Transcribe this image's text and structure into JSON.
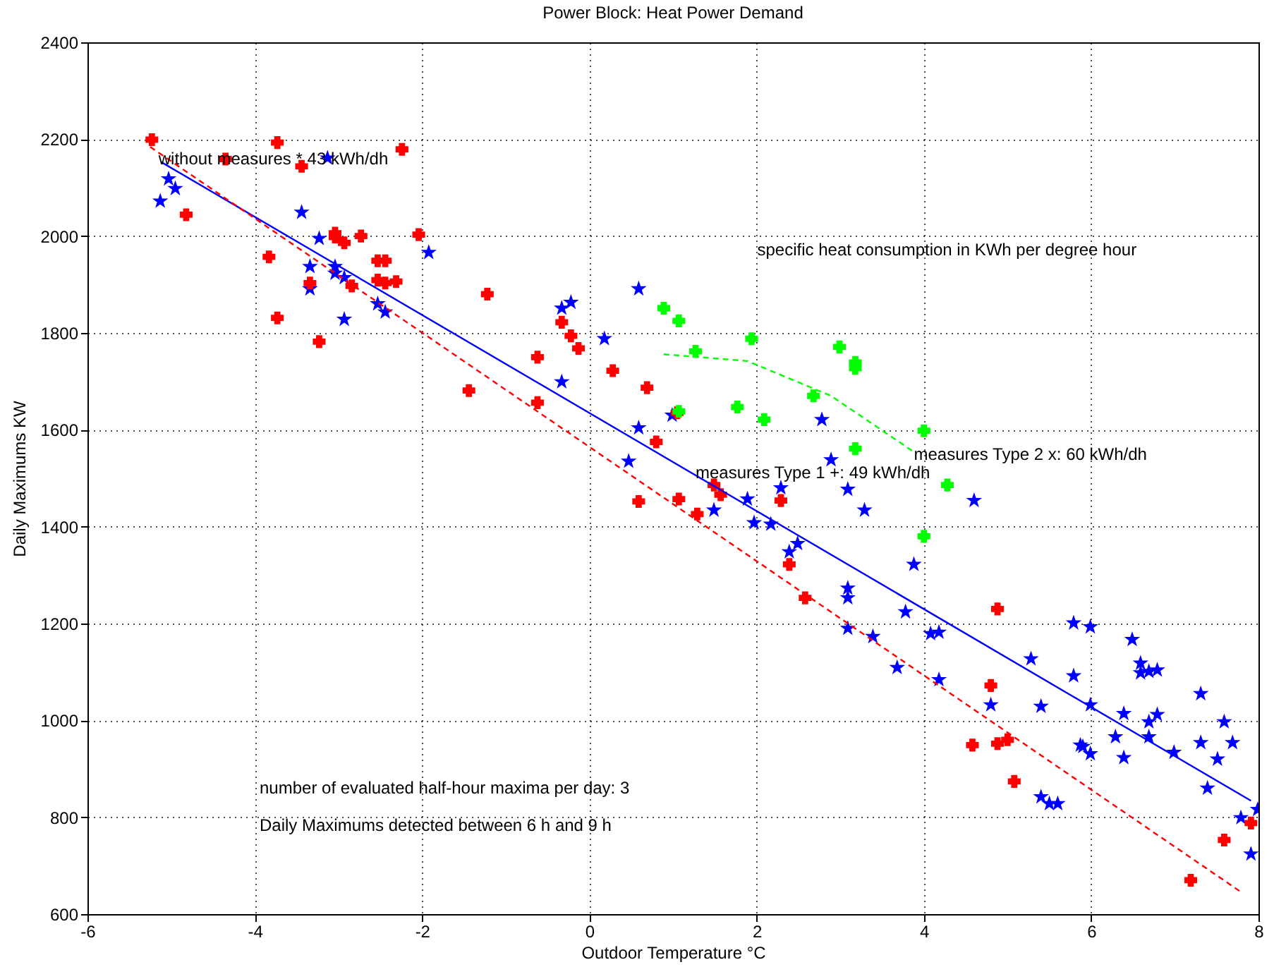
{
  "chart_data": {
    "type": "scatter",
    "title": "Power Block: Heat Power Demand",
    "xlabel": "Outdoor Temperature °C",
    "ylabel": "Daily Maximums KW",
    "xlim": [
      -6,
      8
    ],
    "xticks": [
      -6,
      -4,
      -2,
      0,
      2,
      4,
      6,
      8
    ],
    "ylim": [
      600,
      2400
    ],
    "yticks": [
      600,
      800,
      1000,
      1200,
      1400,
      1600,
      1800,
      2000,
      2200,
      2400
    ],
    "grid": true,
    "series": [
      {
        "type": "scatter",
        "color": "#0000ff",
        "marker": "star",
        "x": [
          -5.13,
          -5.03,
          -4.95,
          -3.44,
          -3.13,
          -3.23,
          -3.34,
          -3.34,
          -3.04,
          -3.04,
          -2.93,
          -2.93,
          -2.53,
          -2.44,
          -1.92,
          -0.33,
          -0.22,
          0.59,
          0.18,
          -0.33,
          0.59,
          0.47,
          0.99,
          1.49,
          1.89,
          1.97,
          2.17,
          2.29,
          2.49,
          2.39,
          2.78,
          2.89,
          3.09,
          3.29,
          4.6,
          3.88,
          3.09,
          3.09,
          3.09,
          3.39,
          3.68,
          3.78,
          4.08,
          4.18,
          4.18,
          5.28,
          4.8,
          5.4,
          5.79,
          5.99,
          5.79,
          5.99,
          5.4,
          5.5,
          5.6,
          5.87,
          5.9,
          5.99,
          6.29,
          6.39,
          6.39,
          6.49,
          6.59,
          6.59,
          6.69,
          6.79,
          6.69,
          6.79,
          6.69,
          6.99,
          7.31,
          7.31,
          7.39,
          7.51,
          7.59,
          7.69,
          7.79,
          7.99,
          7.91
        ],
        "values": [
          2072,
          2118,
          2098,
          2049,
          2161,
          1995,
          1937,
          1891,
          1937,
          1923,
          1914,
          1828,
          1860,
          1843,
          1966,
          1851,
          1863,
          1891,
          1788,
          1699,
          1604,
          1535,
          1630,
          1434,
          1457,
          1408,
          1405,
          1480,
          1365,
          1348,
          1621,
          1538,
          1477,
          1434,
          1454,
          1322,
          1273,
          1253,
          1190,
          1173,
          1109,
          1224,
          1179,
          1182,
          1084,
          1127,
          1032,
          1029,
          1201,
          1193,
          1092,
          1032,
          842,
          828,
          828,
          949,
          946,
          931,
          966,
          923,
          1014,
          1167,
          1118,
          1098,
          1101,
          1104,
          997,
          1012,
          966,
          934,
          1055,
          954,
          860,
          920,
          997,
          954,
          799,
          816,
          724
        ]
      },
      {
        "type": "scatter",
        "color": "#ff0000",
        "marker": "cross",
        "x": [
          -5.23,
          -3.73,
          -4.35,
          -3.44,
          -2.24,
          -4.82,
          -3.83,
          -3.04,
          -3.04,
          -2.93,
          -2.73,
          -2.04,
          -2.53,
          -2.44,
          -2.53,
          -2.44,
          -2.31,
          -2.84,
          -3.34,
          -3.73,
          -3.23,
          -1.22,
          -0.62,
          -1.44,
          -0.62,
          -0.33,
          -0.22,
          -0.13,
          0.28,
          0.69,
          0.8,
          0.59,
          1.07,
          1.29,
          1.57,
          1.49,
          2.29,
          2.39,
          1.05,
          2.58,
          4.88,
          4.8,
          4.58,
          4.88,
          5.0,
          5.08,
          7.59,
          7.19,
          7.91
        ],
        "values": [
          2199,
          2193,
          2159,
          2144,
          2179,
          2044,
          1957,
          2006,
          1998,
          1986,
          2000,
          2003,
          1949,
          1949,
          1909,
          1903,
          1906,
          1897,
          1903,
          1831,
          1782,
          1880,
          1750,
          1681,
          1656,
          1822,
          1794,
          1768,
          1722,
          1687,
          1575,
          1452,
          1457,
          1426,
          1466,
          1486,
          1454,
          1322,
          1635,
          1253,
          1230,
          1072,
          949,
          952,
          960,
          874,
          753,
          670,
          788
        ]
      },
      {
        "type": "scatter",
        "color": "#00ff00",
        "marker": "cross",
        "x": [
          0.89,
          1.07,
          1.27,
          1.94,
          1.77,
          2.09,
          2.68,
          2.99,
          3.18,
          3.18,
          3.18,
          4.0,
          4.28,
          4.0,
          1.07
        ],
        "values": [
          1851,
          1825,
          1762,
          1788,
          1647,
          1621,
          1670,
          1771,
          1739,
          1727,
          1561,
          1598,
          1486,
          1380,
          1638
        ]
      },
      {
        "type": "line",
        "color": "#0000ff",
        "line_style": "solid",
        "x": [
          -5.12,
          7.91
        ],
        "values": [
          2153,
          834
        ]
      },
      {
        "type": "line",
        "color": "#ff0000",
        "line_style": "dashed",
        "x": [
          -5.25,
          7.78
        ],
        "values": [
          2184,
          647
        ]
      },
      {
        "type": "line",
        "color": "#00ff00",
        "line_style": "dashed",
        "x": [
          0.89,
          1.89,
          2.89,
          3.9
        ],
        "values": [
          1756,
          1742,
          1670,
          1552
        ]
      }
    ],
    "annotations": [
      {
        "text": "without measures * 43 kWh/dh",
        "x": -5.15,
        "y": 2160
      },
      {
        "text": "measures Type 1 +: 49 kWh/dh",
        "x": 1.27,
        "y": 1512
      },
      {
        "text": "measures Type 2 x: 60 kWh/dh",
        "x": 3.88,
        "y": 1549
      },
      "specific heat consumption in KWh per degree hour",
      "number of evaluated half-hour maxima per day: 3",
      "Daily Maximums detected between 6 h and 9 h"
    ]
  }
}
